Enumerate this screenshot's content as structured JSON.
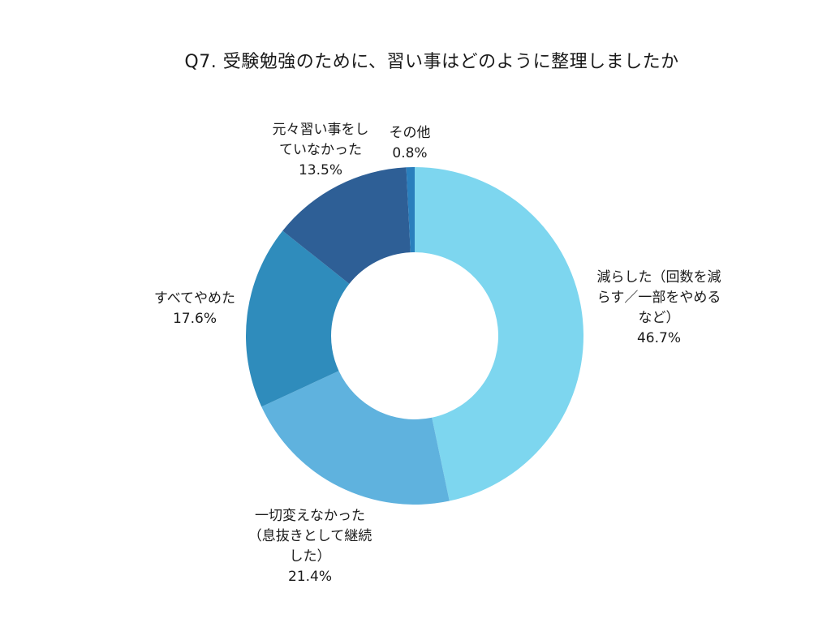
{
  "chart_data": {
    "type": "pie",
    "style": "donut",
    "title": "Q7. 受験勉強のために、習い事はどのように整理しましたか",
    "categories": [
      "減らした（回数を減らす／一部をやめるなど）",
      "一切変えなかった（息抜きとして継続した）",
      "すべてやめた",
      "元々習い事をしていなかった",
      "その他"
    ],
    "values": [
      46.7,
      21.4,
      17.6,
      13.5,
      0.8
    ],
    "percent_labels": [
      "46.7%",
      "21.4%",
      "17.6%",
      "13.5%",
      "0.8%"
    ],
    "label_lines": [
      [
        "減らした（回数を減",
        "らす／一部をやめる",
        "など）"
      ],
      [
        "一切変えなかった",
        "（息抜きとして継続",
        "した）"
      ],
      [
        "すべてやめた"
      ],
      [
        "元々習い事をし",
        "ていなかった"
      ],
      [
        "その他"
      ]
    ],
    "colors": [
      "#7dd6ef",
      "#5fb2de",
      "#2f8cbc",
      "#2e5f96",
      "#2a7fbd"
    ],
    "start_angle": "top",
    "direction": "clockwise"
  }
}
